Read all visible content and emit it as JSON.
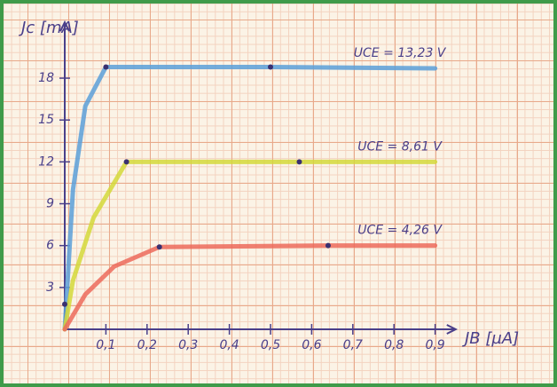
{
  "chart_data": {
    "type": "line",
    "x_label": "JB [µA]",
    "y_label": "Jc [mA]",
    "xlim": [
      0,
      0.95
    ],
    "ylim": [
      0,
      22
    ],
    "xticks": [
      {
        "value": 0.1,
        "label": "0,1"
      },
      {
        "value": 0.2,
        "label": "0,2"
      },
      {
        "value": 0.3,
        "label": "0,3"
      },
      {
        "value": 0.4,
        "label": "0,4"
      },
      {
        "value": 0.5,
        "label": "0,5"
      },
      {
        "value": 0.6,
        "label": "0,6"
      },
      {
        "value": 0.7,
        "label": "0,7"
      },
      {
        "value": 0.8,
        "label": "0,8"
      },
      {
        "value": 0.9,
        "label": "0,9"
      }
    ],
    "yticks": [
      3,
      6,
      9,
      12,
      15,
      18
    ],
    "series": [
      {
        "name": "UCE = 13,23 V",
        "color": "#5a9fd8",
        "x": [
          0,
          0.02,
          0.05,
          0.1,
          0.5,
          0.9
        ],
        "values": [
          0,
          10,
          16,
          18.8,
          18.8,
          18.7
        ],
        "marker_x": [
          0.1,
          0.5
        ],
        "marker_y": [
          18.8,
          18.8
        ]
      },
      {
        "name": "UCE = 8,61 V",
        "color": "#d4d83a",
        "x": [
          0,
          0.02,
          0.07,
          0.15,
          0.57,
          0.9
        ],
        "values": [
          0,
          3.5,
          8,
          12,
          12,
          12
        ],
        "marker_x": [
          0,
          0.15,
          0.57
        ],
        "marker_y": [
          1.8,
          12,
          12
        ]
      },
      {
        "name": "UCE = 4,26 V",
        "color": "#ec6a5a",
        "x": [
          0,
          0.05,
          0.12,
          0.23,
          0.64,
          0.9
        ],
        "values": [
          0,
          2.5,
          4.5,
          5.9,
          6,
          6
        ],
        "marker_x": [
          0.23,
          0.64
        ],
        "marker_y": [
          5.9,
          6
        ]
      }
    ]
  }
}
